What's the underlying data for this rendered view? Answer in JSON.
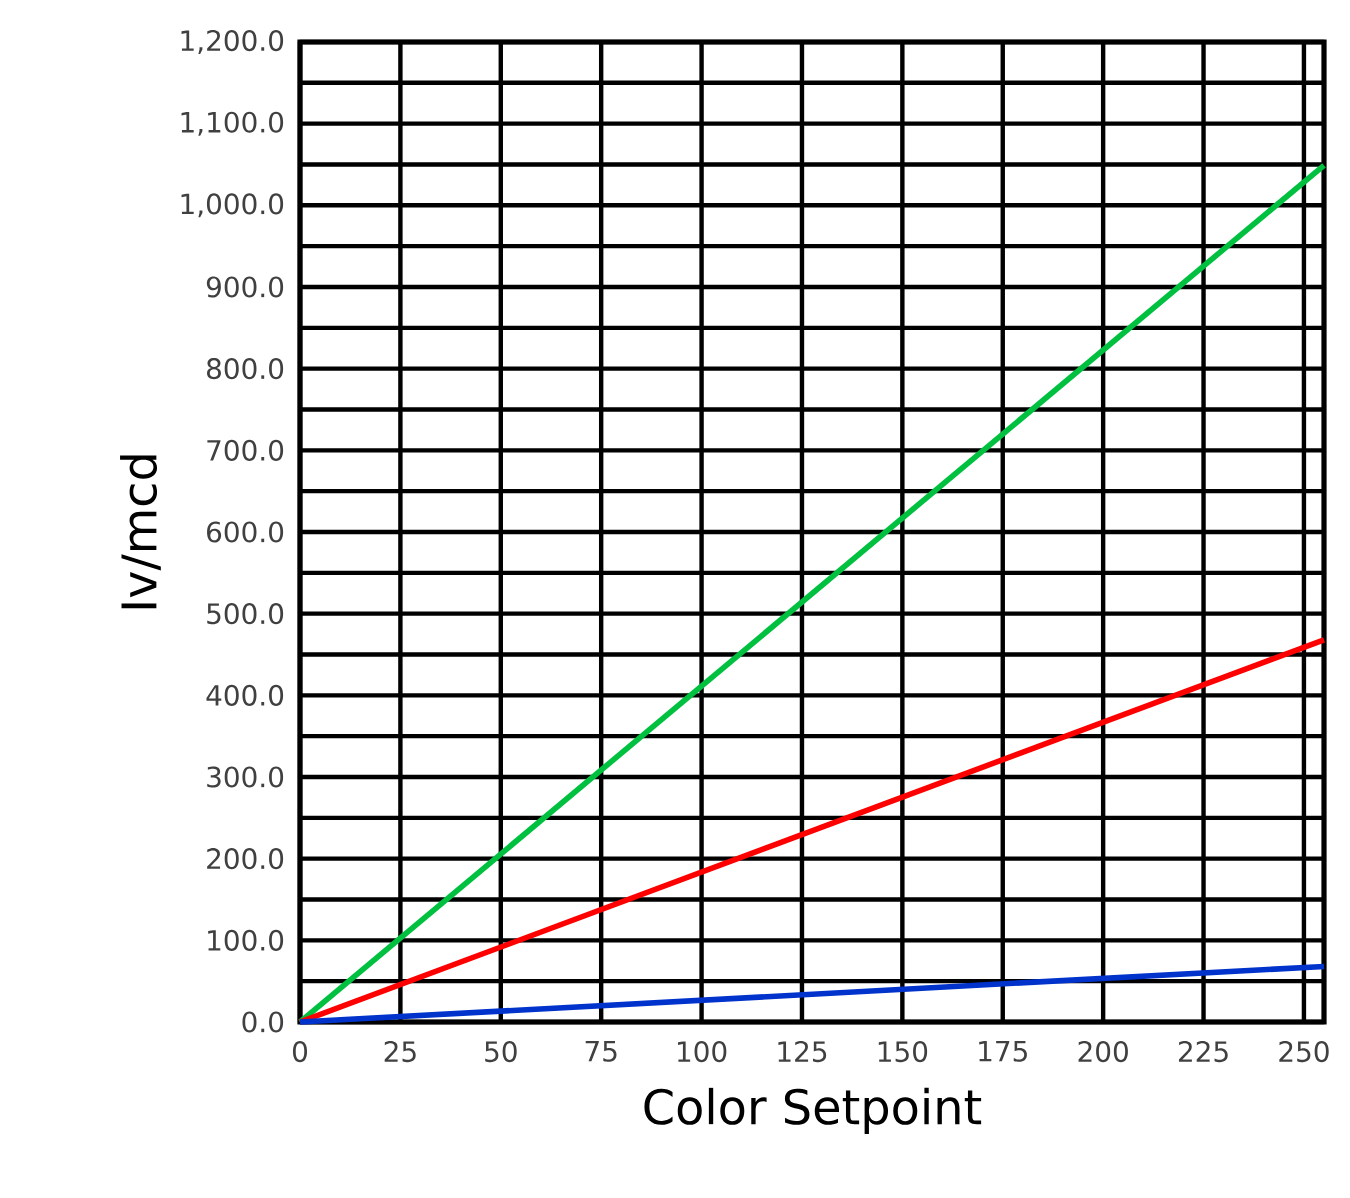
{
  "chart_data": {
    "type": "line",
    "xlabel": "Color Setpoint",
    "ylabel": "Iv/mcd",
    "x": [
      0,
      255
    ],
    "series": [
      {
        "color": "#00c040",
        "values": [
          0,
          1049
        ]
      },
      {
        "color": "#ff0000",
        "values": [
          0,
          468
        ]
      },
      {
        "color": "#0033cc",
        "values": [
          0,
          68
        ]
      }
    ],
    "xlim": [
      0,
      255
    ],
    "xticks": [
      0,
      25,
      50,
      75,
      100,
      125,
      150,
      175,
      200,
      225,
      250
    ],
    "ylim": [
      0,
      1200
    ],
    "yticks": [
      {
        "value": 0,
        "label": "0.0"
      },
      {
        "value": 100,
        "label": "100.0"
      },
      {
        "value": 200,
        "label": "200.0"
      },
      {
        "value": 300,
        "label": "300.0"
      },
      {
        "value": 400,
        "label": "400.0"
      },
      {
        "value": 500,
        "label": "500.0"
      },
      {
        "value": 600,
        "label": "600.0"
      },
      {
        "value": 700,
        "label": "700.0"
      },
      {
        "value": 800,
        "label": "800.0"
      },
      {
        "value": 900,
        "label": "900.0"
      },
      {
        "value": 1000,
        "label": "1,000.0"
      },
      {
        "value": 1100,
        "label": "1,100.0"
      },
      {
        "value": 1200,
        "label": "1,200.0"
      }
    ],
    "grid": true,
    "marker": "none",
    "line_style": "solid"
  }
}
